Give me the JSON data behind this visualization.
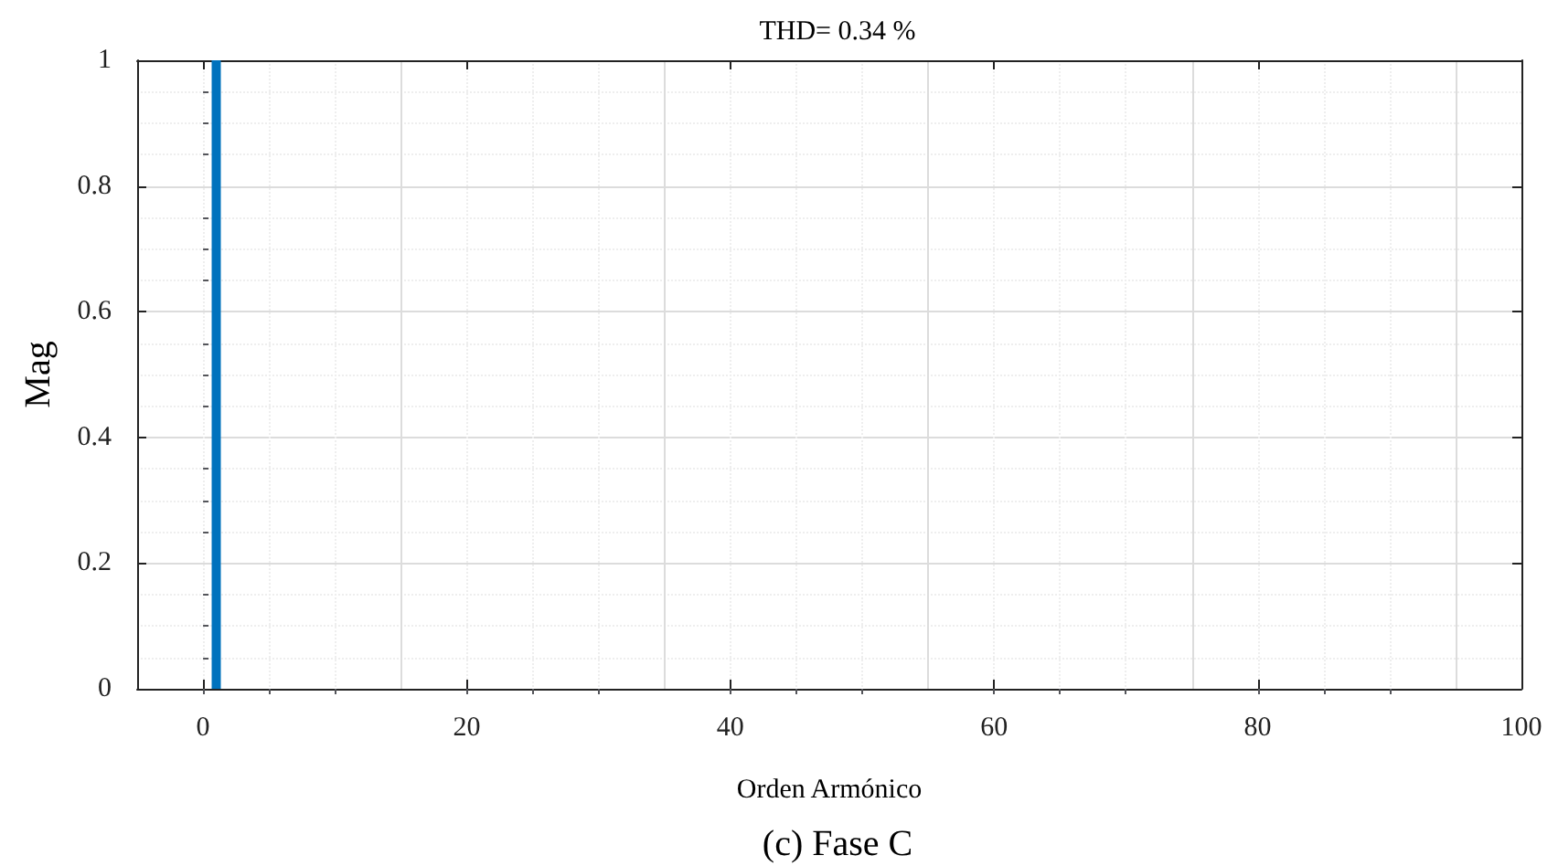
{
  "chart_data": {
    "type": "bar",
    "title": "THD= 0.34 %",
    "xlabel": "Orden Armónico",
    "ylabel": "Mag",
    "annotations": [
      "(c) Fase C"
    ],
    "x": [
      1
    ],
    "values": [
      1
    ],
    "color": "#0072bd",
    "xlim": [
      -5,
      100
    ],
    "xticks": [
      0,
      20,
      40,
      60,
      80,
      100
    ],
    "ylim": [
      0,
      1
    ],
    "yticks": [
      0,
      0.2,
      0.4,
      0.6,
      0.8,
      1
    ],
    "grid": true
  }
}
